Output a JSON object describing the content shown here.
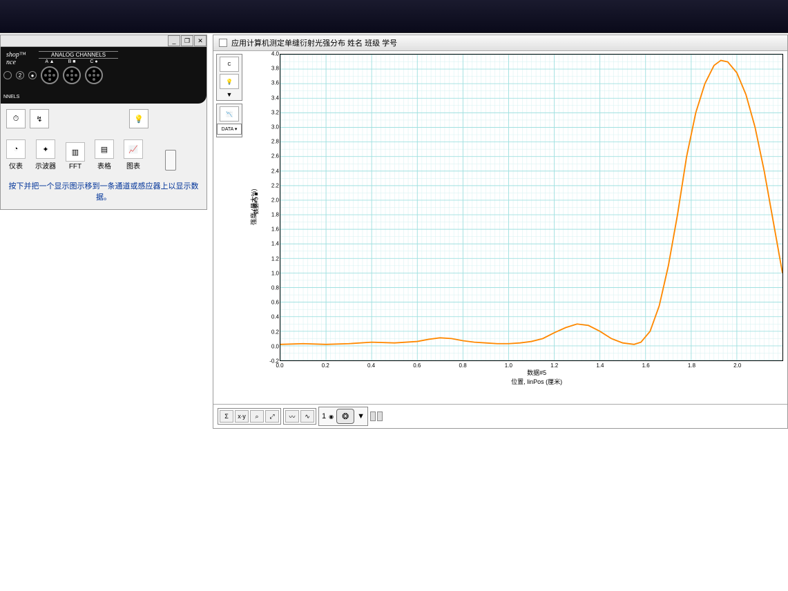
{
  "left_panel": {
    "window_controls": {
      "min": "_",
      "max": "❐",
      "close": "✕"
    },
    "hardware": {
      "logo_top": "shop™",
      "logo_bottom": "nce",
      "analog_label": "ANALOG CHANNELS",
      "bottom_label": "NNELS",
      "slots": [
        "2"
      ],
      "channels": [
        {
          "label": "A ▲"
        },
        {
          "label": "B ■"
        },
        {
          "label": "C ●"
        }
      ]
    },
    "displays": [
      {
        "label": "仪表",
        "glyph": "◔"
      },
      {
        "label": "示波器",
        "glyph": "✦"
      },
      {
        "label": "FFT",
        "glyph": "▥"
      },
      {
        "label": "表格",
        "glyph": "▤"
      },
      {
        "label": "图表",
        "glyph": "📈"
      }
    ],
    "bulb_glyph": "💡",
    "arrow_glyph": "↯",
    "hint": "按下并把一个显示图示移到一条通道或感应器上以显示数据。"
  },
  "right_panel": {
    "title": "应用计算机测定单缝衍射光强分布  姓名 班级 学号",
    "side_tools": {
      "sensor": "C",
      "bulb": "💡",
      "dropdown": "▼",
      "data_btn": "DATA ▾",
      "graph_btn": "📉"
    },
    "chart": {
      "type": "line",
      "line_color": "#ff8800",
      "line_width": 2,
      "background_color": "#ffffff",
      "grid_color": "#a0e0e0",
      "grid_minor_color": "#d0f0f0",
      "border_color": "#000000",
      "y_legend": "数据#5 ■",
      "y_legend_color": "#ff8800",
      "y_axis_label": "强度 (最大%)",
      "x_axis_label_line1": "数据#5",
      "x_axis_label_line2": "位置, linPos (厘米)",
      "xlim": [
        0,
        2.2
      ],
      "ylim": [
        -0.2,
        4.0
      ],
      "x_ticks": [
        0,
        0.2,
        0.4,
        0.6,
        0.8,
        1.0,
        1.2,
        1.4,
        1.6,
        1.8,
        2.0
      ],
      "y_ticks": [
        -0.2,
        0,
        0.2,
        0.4,
        0.6,
        0.8,
        1.0,
        1.2,
        1.4,
        1.6,
        1.8,
        2.0,
        2.2,
        2.4,
        2.6,
        2.8,
        3.0,
        3.2,
        3.4,
        3.6,
        3.8,
        4.0
      ],
      "data": [
        [
          0.0,
          0.02
        ],
        [
          0.1,
          0.03
        ],
        [
          0.2,
          0.02
        ],
        [
          0.3,
          0.03
        ],
        [
          0.4,
          0.05
        ],
        [
          0.5,
          0.04
        ],
        [
          0.6,
          0.06
        ],
        [
          0.65,
          0.09
        ],
        [
          0.7,
          0.11
        ],
        [
          0.75,
          0.1
        ],
        [
          0.8,
          0.07
        ],
        [
          0.85,
          0.05
        ],
        [
          0.9,
          0.04
        ],
        [
          0.95,
          0.03
        ],
        [
          1.0,
          0.03
        ],
        [
          1.05,
          0.04
        ],
        [
          1.1,
          0.06
        ],
        [
          1.15,
          0.1
        ],
        [
          1.2,
          0.18
        ],
        [
          1.25,
          0.25
        ],
        [
          1.3,
          0.3
        ],
        [
          1.35,
          0.28
        ],
        [
          1.4,
          0.2
        ],
        [
          1.45,
          0.1
        ],
        [
          1.5,
          0.04
        ],
        [
          1.55,
          0.02
        ],
        [
          1.58,
          0.05
        ],
        [
          1.62,
          0.2
        ],
        [
          1.66,
          0.55
        ],
        [
          1.7,
          1.1
        ],
        [
          1.74,
          1.8
        ],
        [
          1.78,
          2.6
        ],
        [
          1.82,
          3.2
        ],
        [
          1.86,
          3.6
        ],
        [
          1.9,
          3.85
        ],
        [
          1.93,
          3.92
        ],
        [
          1.96,
          3.9
        ],
        [
          2.0,
          3.75
        ],
        [
          2.04,
          3.45
        ],
        [
          2.08,
          3.0
        ],
        [
          2.12,
          2.4
        ],
        [
          2.16,
          1.7
        ],
        [
          2.2,
          1.0
        ]
      ]
    },
    "bottom_tools": {
      "sigma": "Σ",
      "xy": "x∙y",
      "fit": "⌕",
      "zoom": "⤢",
      "plot": "〰",
      "opts": "∿",
      "index": "1",
      "wheel": "❂",
      "dd": "▼"
    }
  }
}
